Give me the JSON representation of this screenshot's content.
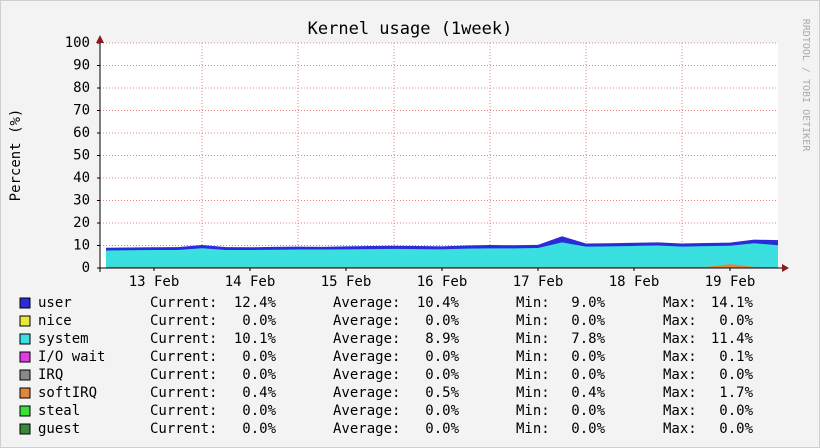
{
  "chart_data": {
    "type": "area",
    "title": "Kernel usage  (1week)",
    "y_label": "Percent (%)",
    "side_note": "RRDTOOL / TOBI OETIKER",
    "x": [
      0,
      0.25,
      0.5,
      0.75,
      1,
      1.25,
      1.5,
      1.75,
      2,
      2.25,
      2.5,
      2.75,
      3,
      3.25,
      3.5,
      3.75,
      4,
      4.25,
      4.5,
      4.75,
      5,
      5.25,
      5.5,
      5.75,
      6,
      6.25,
      6.5,
      6.75,
      7
    ],
    "xlim": [
      -0.0625,
      7
    ],
    "xticks": [
      {
        "value": 0.5,
        "label": "13 Feb"
      },
      {
        "value": 1.5,
        "label": "14 Feb"
      },
      {
        "value": 2.5,
        "label": "15 Feb"
      },
      {
        "value": 3.5,
        "label": "16 Feb"
      },
      {
        "value": 4.5,
        "label": "17 Feb"
      },
      {
        "value": 5.5,
        "label": "18 Feb"
      },
      {
        "value": 6.5,
        "label": "19 Feb"
      }
    ],
    "xgrid": [
      1,
      2,
      3,
      4,
      5,
      6
    ],
    "ylim": [
      0,
      100
    ],
    "yticks": [
      0,
      10,
      20,
      30,
      40,
      50,
      60,
      70,
      80,
      90,
      100
    ],
    "grid": true,
    "stat_names": [
      "Current:",
      "Average:",
      "Min:",
      "Max:"
    ],
    "series": [
      {
        "name": "user",
        "color": "#2b2bd8",
        "values": [
          9.0,
          9.1,
          9.2,
          9.3,
          10.2,
          9.3,
          9.2,
          9.4,
          9.5,
          9.4,
          9.6,
          9.8,
          9.9,
          9.8,
          9.6,
          10.0,
          10.2,
          10.1,
          10.3,
          14.1,
          10.9,
          11.0,
          11.2,
          11.4,
          10.9,
          11.1,
          11.3,
          12.6,
          12.4
        ],
        "stats": [
          12.4,
          10.4,
          9.0,
          14.1
        ],
        "stats_labels": [
          "12.4%",
          "10.4%",
          "9.0%",
          "14.1%"
        ]
      },
      {
        "name": "nice",
        "color": "#e8e83a",
        "values": [
          0,
          0,
          0,
          0,
          0,
          0,
          0,
          0,
          0,
          0,
          0,
          0,
          0,
          0,
          0,
          0,
          0,
          0,
          0,
          0,
          0,
          0,
          0,
          0,
          0,
          0,
          0,
          0,
          0
        ],
        "stats": [
          0,
          0,
          0,
          0
        ],
        "stats_labels": [
          "0.0%",
          "0.0%",
          "0.0%",
          "0.0%"
        ]
      },
      {
        "name": "system",
        "color": "#3ae0e0",
        "values": [
          7.8,
          7.9,
          8.0,
          8.0,
          8.8,
          8.0,
          8.0,
          8.1,
          8.2,
          8.2,
          8.3,
          8.4,
          8.5,
          8.4,
          8.3,
          8.6,
          8.7,
          8.7,
          8.9,
          11.4,
          9.5,
          9.6,
          9.8,
          10.0,
          9.5,
          9.7,
          9.9,
          11.0,
          10.1
        ],
        "stats": [
          10.1,
          8.9,
          7.8,
          11.4
        ],
        "stats_labels": [
          "10.1%",
          "8.9%",
          "7.8%",
          "11.4%"
        ]
      },
      {
        "name": "I/O wait",
        "color": "#e03ae0",
        "values": [
          0,
          0,
          0,
          0,
          0,
          0,
          0,
          0,
          0,
          0,
          0,
          0,
          0,
          0,
          0,
          0,
          0,
          0,
          0,
          0,
          0,
          0,
          0,
          0,
          0,
          0,
          0,
          0,
          0
        ],
        "stats": [
          0,
          0,
          0,
          0.1
        ],
        "stats_labels": [
          "0.0%",
          "0.0%",
          "0.0%",
          "0.1%"
        ]
      },
      {
        "name": "IRQ",
        "color": "#888888",
        "values": [
          0,
          0,
          0,
          0,
          0,
          0,
          0,
          0,
          0,
          0,
          0,
          0,
          0,
          0,
          0,
          0,
          0,
          0,
          0,
          0,
          0,
          0,
          0,
          0,
          0,
          0,
          0,
          0,
          0
        ],
        "stats": [
          0,
          0,
          0,
          0
        ],
        "stats_labels": [
          "0.0%",
          "0.0%",
          "0.0%",
          "0.0%"
        ]
      },
      {
        "name": "softIRQ",
        "color": "#e0883a",
        "values": [
          0.5,
          0.5,
          0.5,
          0.5,
          0.5,
          0.5,
          0.5,
          0.5,
          0.5,
          0.5,
          0.5,
          0.5,
          0.5,
          0.5,
          0.5,
          0.5,
          0.5,
          0.5,
          0.5,
          0.5,
          0.5,
          0.5,
          0.5,
          0.5,
          0.5,
          0.5,
          1.7,
          0.5,
          0.4
        ],
        "stats": [
          0.4,
          0.5,
          0.4,
          1.7
        ],
        "stats_labels": [
          "0.4%",
          "0.5%",
          "0.4%",
          "1.7%"
        ]
      },
      {
        "name": "steal",
        "color": "#3ae03a",
        "values": [
          0,
          0,
          0,
          0,
          0,
          0,
          0,
          0,
          0,
          0,
          0,
          0,
          0,
          0,
          0,
          0,
          0,
          0,
          0,
          0,
          0,
          0,
          0,
          0,
          0,
          0,
          0,
          0,
          0
        ],
        "stats": [
          0,
          0,
          0,
          0
        ],
        "stats_labels": [
          "0.0%",
          "0.0%",
          "0.0%",
          "0.0%"
        ]
      },
      {
        "name": "guest",
        "color": "#3a883a",
        "values": [
          0,
          0,
          0,
          0,
          0,
          0,
          0,
          0,
          0,
          0,
          0,
          0,
          0,
          0,
          0,
          0,
          0,
          0,
          0,
          0,
          0,
          0,
          0,
          0,
          0,
          0,
          0,
          0,
          0
        ],
        "stats": [
          0,
          0,
          0,
          0
        ],
        "stats_labels": [
          "0.0%",
          "0.0%",
          "0.0%",
          "0.0%"
        ]
      }
    ]
  }
}
